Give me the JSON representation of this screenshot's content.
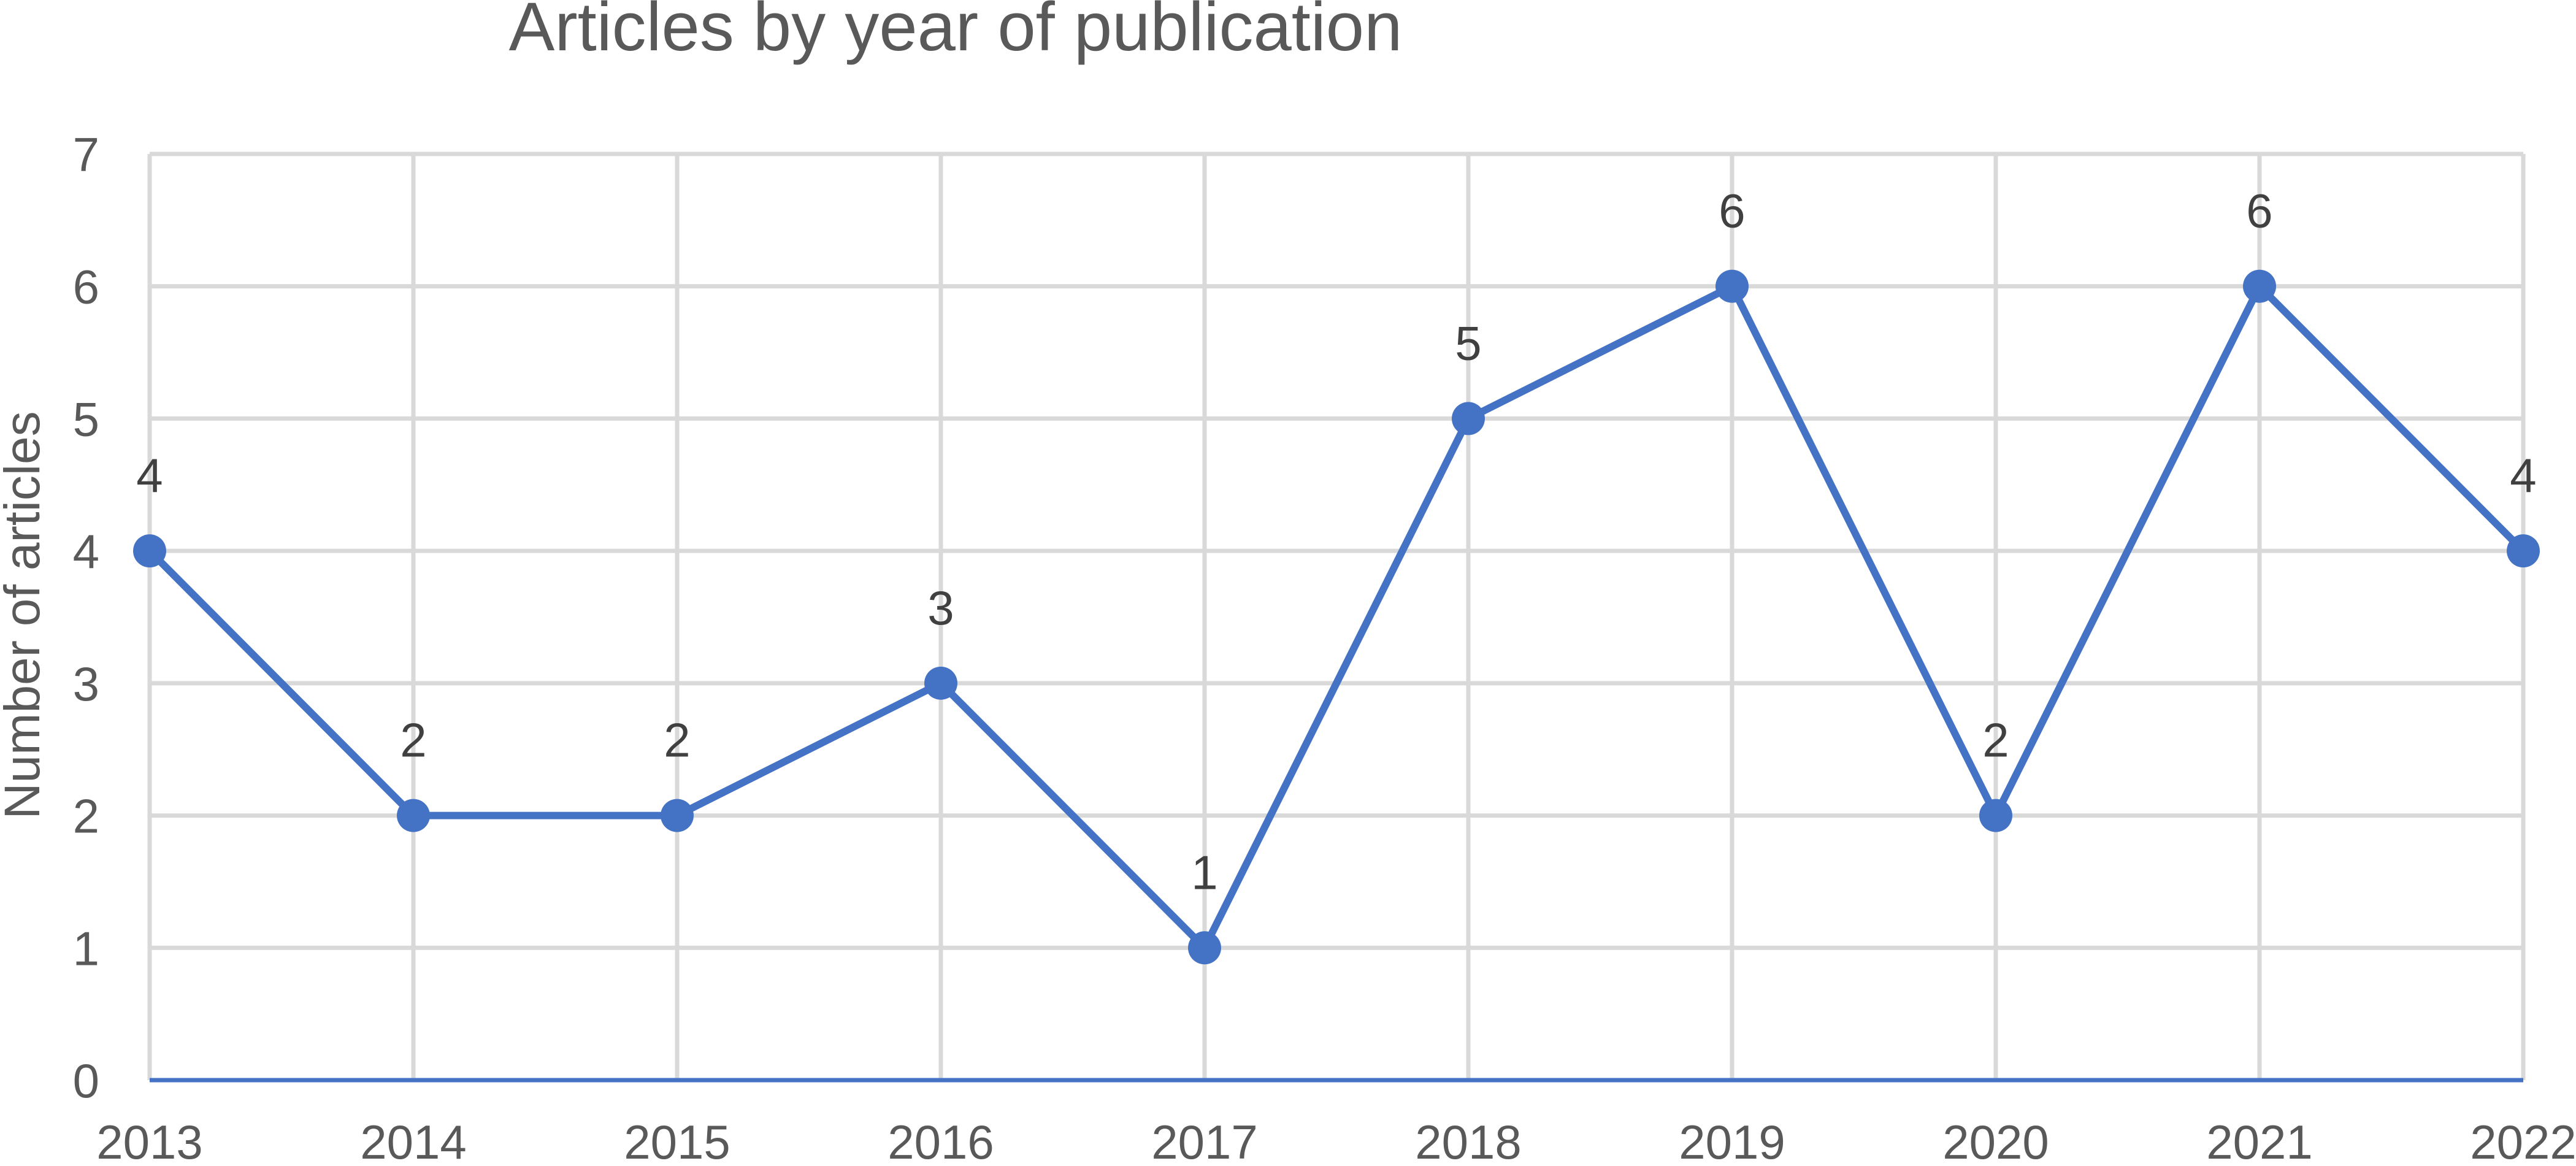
{
  "chart_data": {
    "type": "line",
    "title": "Articles by year of publication",
    "xlabel": "",
    "ylabel": "Number of articles",
    "categories": [
      "2013",
      "2014",
      "2015",
      "2016",
      "2017",
      "2018",
      "2019",
      "2020",
      "2021",
      "2022"
    ],
    "series": [
      {
        "values": [
          4,
          2,
          2,
          3,
          1,
          5,
          6,
          2,
          6,
          4
        ],
        "color": "#4472c4"
      }
    ],
    "ylim": [
      0,
      7
    ],
    "yticks": [
      "0",
      "1",
      "2",
      "3",
      "4",
      "5",
      "6",
      "7"
    ],
    "grid": true,
    "data_labels": true,
    "legend": "none"
  }
}
